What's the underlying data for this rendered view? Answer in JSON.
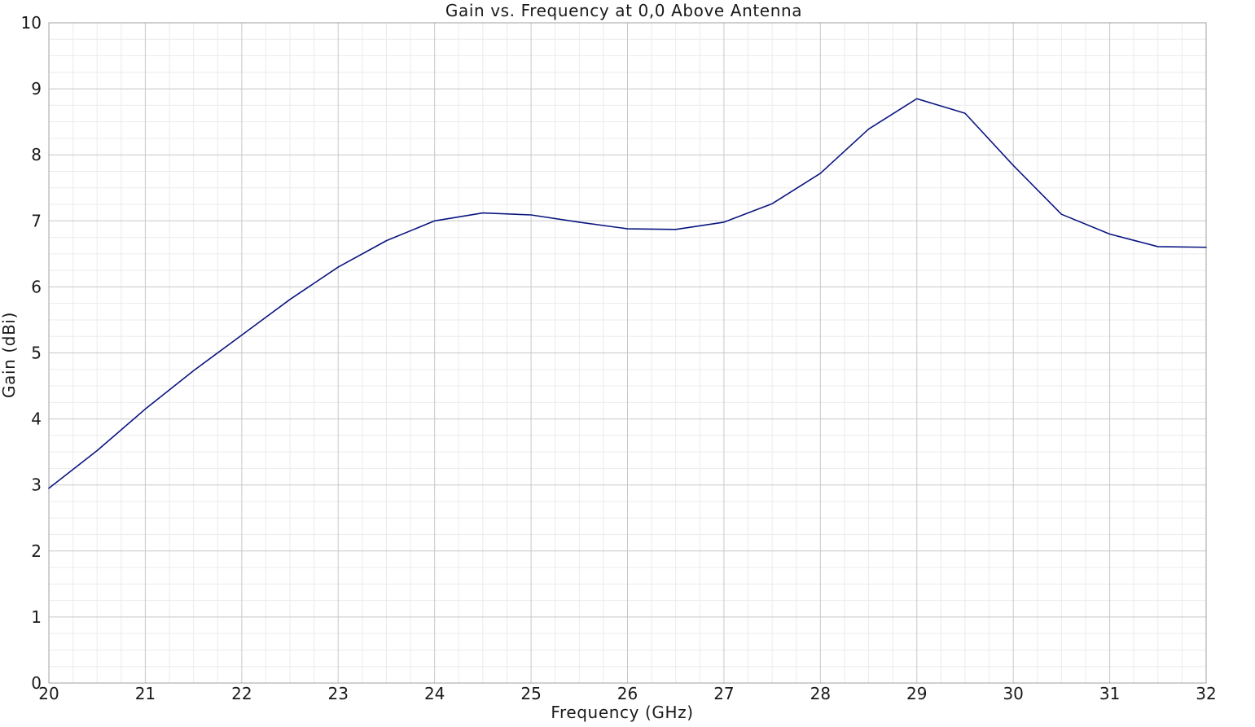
{
  "chart_data": {
    "type": "line",
    "title": "Gain vs. Frequency at 0,0 Above Antenna",
    "xlabel": "Frequency (GHz)",
    "ylabel": "Gain (dBi)",
    "xlim": [
      20,
      32
    ],
    "ylim": [
      0,
      10
    ],
    "x_ticks": [
      20,
      21,
      22,
      23,
      24,
      25,
      26,
      27,
      28,
      29,
      30,
      31,
      32
    ],
    "y_ticks": [
      0,
      1,
      2,
      3,
      4,
      5,
      6,
      7,
      8,
      9,
      10
    ],
    "grid": true,
    "minor_grid": true,
    "legend": "none",
    "series": [
      {
        "color": "#0a1580",
        "x": [
          20,
          20.5,
          21,
          21.5,
          22,
          22.5,
          23,
          23.5,
          24,
          24.5,
          25,
          25.5,
          26,
          26.5,
          27,
          27.5,
          28,
          28.5,
          29,
          29.5,
          30,
          30.5,
          31,
          31.5,
          32
        ],
        "y": [
          2.95,
          3.52,
          4.15,
          4.73,
          5.27,
          5.81,
          6.3,
          6.7,
          7.0,
          7.12,
          7.09,
          6.98,
          6.88,
          6.87,
          6.98,
          7.26,
          7.72,
          8.39,
          8.85,
          8.63,
          7.84,
          7.1,
          6.8,
          6.61,
          6.6
        ]
      }
    ]
  }
}
